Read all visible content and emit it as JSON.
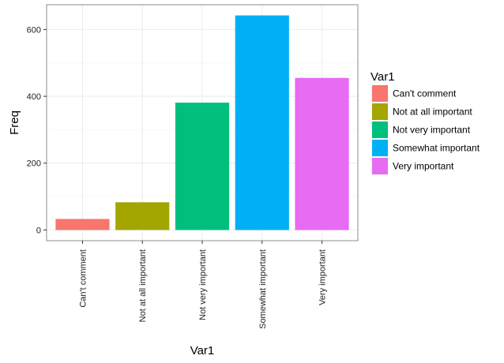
{
  "chart_data": {
    "type": "bar",
    "categories": [
      "Can't comment",
      "Not at all important",
      "Not very important",
      "Somewhat important",
      "Very important"
    ],
    "values": [
      33,
      83,
      381,
      642,
      455
    ],
    "colors": [
      "#F8766D",
      "#A3A500",
      "#00BF7D",
      "#00B0F6",
      "#E76BF3"
    ],
    "xlabel": "Var1",
    "ylabel": "Freq",
    "ylim": [
      -32,
      674
    ],
    "yticks": [
      0,
      200,
      400,
      600
    ],
    "grid": true,
    "legend": {
      "title": "Var1",
      "position": "right",
      "entries": [
        "Can't comment",
        "Not at all important",
        "Not very important",
        "Somewhat important",
        "Very important"
      ]
    }
  }
}
